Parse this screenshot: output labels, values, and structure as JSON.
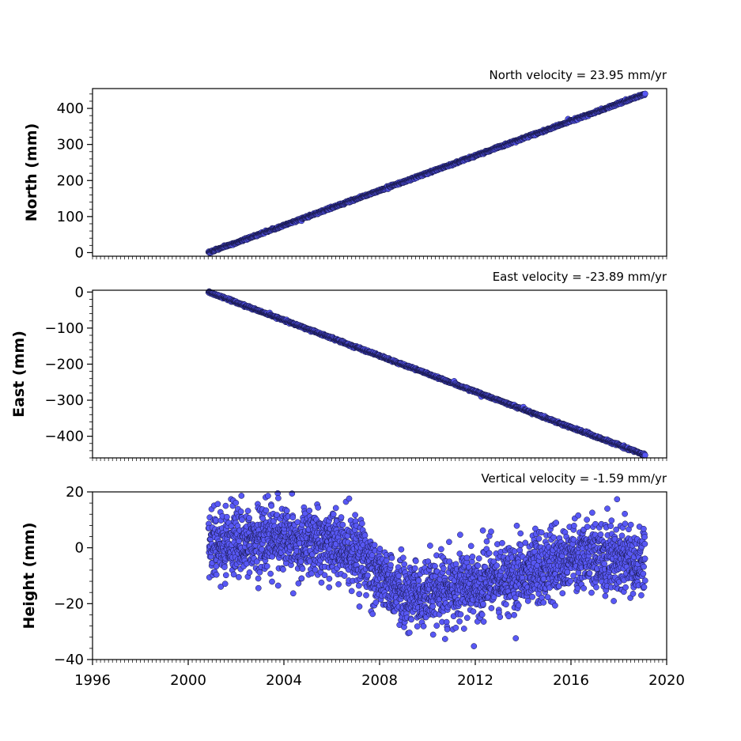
{
  "chart_data": [
    {
      "type": "scatter",
      "ylabel": "North (mm)",
      "annotation": "North velocity = 23.95 mm/yr",
      "velocity_mm_per_yr": 23.95,
      "xlim": [
        1996,
        2020
      ],
      "ylim": [
        -10,
        455
      ],
      "yticks": [
        0,
        100,
        200,
        300,
        400
      ],
      "ytick_labels": [
        "0",
        "100",
        "200",
        "300",
        "400"
      ],
      "x_start": 2000.85,
      "x_end": 2019.1,
      "y_start": 0,
      "y_end": 440,
      "scatter_mm": 1.5,
      "marker_color": "#5858f5",
      "edge_color": "#141440"
    },
    {
      "type": "scatter",
      "ylabel": "East (mm)",
      "annotation": "East velocity = -23.89 mm/yr",
      "velocity_mm_per_yr": -23.89,
      "xlim": [
        1996,
        2020
      ],
      "ylim": [
        -460,
        5
      ],
      "yticks": [
        0,
        -100,
        -200,
        -300,
        -400
      ],
      "ytick_labels": [
        "0",
        "−100",
        "−200",
        "−300",
        "−400"
      ],
      "x_start": 2000.85,
      "x_end": 2019.1,
      "y_start": 0,
      "y_end": -452,
      "scatter_mm": 1.5,
      "marker_color": "#5858f5",
      "edge_color": "#141440"
    },
    {
      "type": "scatter",
      "ylabel": "Height (mm)",
      "annotation": "Vertical velocity = -1.59 mm/yr",
      "velocity_mm_per_yr": -1.59,
      "xlim": [
        1996,
        2020
      ],
      "ylim": [
        -40,
        20
      ],
      "yticks": [
        20,
        0,
        -20,
        -40
      ],
      "ytick_labels": [
        "20",
        "0",
        "−20",
        "−40"
      ],
      "xticks": [
        1996,
        2000,
        2004,
        2008,
        2012,
        2016,
        2020
      ],
      "xtick_labels": [
        "1996",
        "2000",
        "2004",
        "2008",
        "2012",
        "2016",
        "2020"
      ],
      "x_start": 2000.85,
      "x_end": 2019.1,
      "trend_knots_year": [
        2000.85,
        2003.5,
        2005.5,
        2007.5,
        2009.0,
        2011.0,
        2012.5,
        2014.5,
        2016.5,
        2019.1
      ],
      "trend_knots_mm": [
        0,
        4,
        2,
        -5,
        -18,
        -14,
        -13,
        -8,
        -3,
        -5
      ],
      "scatter_mm": 6,
      "marker_color": "#5858f5",
      "edge_color": "#141440"
    }
  ]
}
